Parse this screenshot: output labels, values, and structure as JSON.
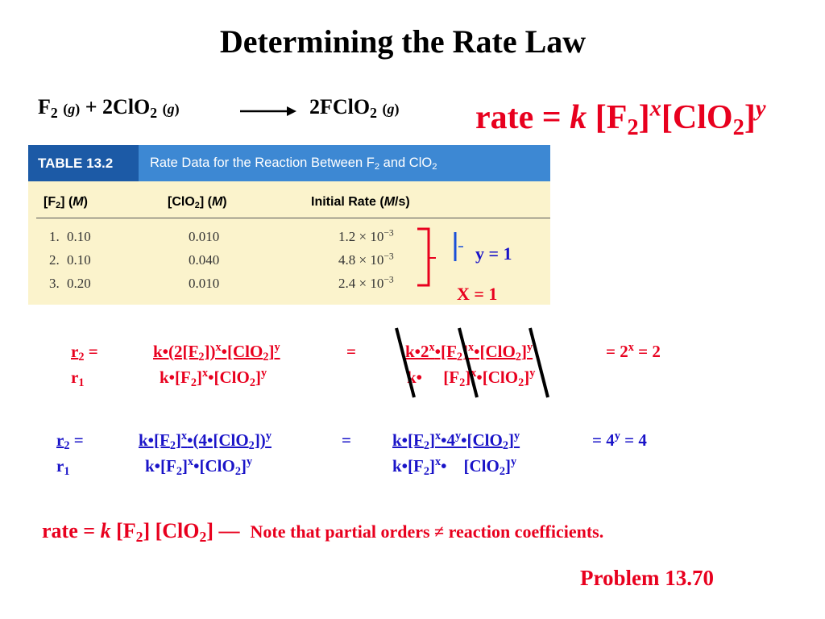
{
  "title": "Determining the Rate Law",
  "reaction": {
    "f2": "F",
    "f2_sub": "2",
    "g1": "g",
    "plus_clo2": "+ 2ClO",
    "clo2_sub": "2",
    "g2": "g",
    "product": "2FClO",
    "product_sub": "2",
    "g3": "g"
  },
  "rate_law_general": {
    "lhs": "rate =",
    "k": "k",
    "f2": "[F",
    "f2_sub": "2",
    "close1": "]",
    "x": "x",
    "clo2": "[ClO",
    "clo2_sub": "2",
    "close2": "]",
    "y": "y"
  },
  "table": {
    "tag": "TABLE 13.2",
    "caption": "Rate Data for the Reaction Between F",
    "caption_sub": "2",
    "caption_tail": " and ClO",
    "caption_sub2": "2",
    "columns": {
      "c1": "[F",
      "c1_sub": "2",
      "c1_tail": "] (",
      "c1_unit": "M",
      "c1_end": ")",
      "c2": "[ClO",
      "c2_sub": "2",
      "c2_tail": "] (",
      "c2_unit": "M",
      "c2_end": ")",
      "c3": "Initial Rate (",
      "c3_unit": "M",
      "c3_end": "/s)"
    },
    "rows": [
      {
        "num": "1.",
        "f2": "0.10",
        "clo2": "0.010",
        "rate": "1.2 × 10",
        "exp": "−3"
      },
      {
        "num": "2.",
        "f2": "0.10",
        "clo2": "0.040",
        "rate": "4.8 × 10",
        "exp": "−3"
      },
      {
        "num": "3.",
        "f2": "0.20",
        "clo2": "0.010",
        "rate": "2.4 × 10",
        "exp": "−3"
      }
    ]
  },
  "annotations": {
    "y_result": "y = 1",
    "x_result": "X = 1"
  },
  "calc_x": {
    "r2": "r",
    "r2_sub": "2",
    "eq": "=",
    "r1": "r",
    "r1_sub": "1",
    "num1": "k•(2[F",
    "num1_sub": "2",
    "num1_b": "])",
    "num1_x": "x",
    "num1_c": "•[ClO",
    "num1_sub2": "2",
    "num1_d": "]",
    "num1_y": "y",
    "den1": "k•[F",
    "den1_sub": "2",
    "den1_b": "]",
    "den1_x": "x",
    "den1_c": "•[ClO",
    "den1_sub2": "2",
    "den1_d": "]",
    "den1_y": "y",
    "eq2": "=",
    "num2": "k•2",
    "num2_x": "x",
    "num2_b": "•[F",
    "num2_sub": "2",
    "num2_c": "]",
    "num2_x2": "x",
    "num2_d": "•[ClO",
    "num2_sub2": "2",
    "num2_e": "]",
    "num2_y": "y",
    "den2": "k•",
    "den2_b": "[F",
    "den2_sub": "2",
    "den2_c": "]",
    "den2_x": "x",
    "den2_d": "•[ClO",
    "den2_sub2": "2",
    "den2_e": "]",
    "den2_y": "y",
    "result": "=  2",
    "result_x": "x",
    "result_tail": " = 2"
  },
  "calc_y": {
    "r2": "r",
    "r2_sub": "2",
    "eq": "=",
    "r1": "r",
    "r1_sub": "1",
    "num1": "k•[F",
    "num1_sub": "2",
    "num1_b": "]",
    "num1_x": "x",
    "num1_c": "•(4•[ClO",
    "num1_sub2": "2",
    "num1_d": "])",
    "num1_y": "y",
    "den1": "k•[F",
    "den1_sub": "2",
    "den1_b": "]",
    "den1_x": "x",
    "den1_c": "•[ClO",
    "den1_sub2": "2",
    "den1_d": "]",
    "den1_y": "y",
    "eq2": "=",
    "num2": "k•[F",
    "num2_sub": "2",
    "num2_b": "]",
    "num2_x": "x",
    "num2_c": "•4",
    "num2_y": "y",
    "num2_d": "•[ClO",
    "num2_sub2": "2",
    "num2_e": "]",
    "num2_y2": "y",
    "den2": "k•[F",
    "den2_sub": "2",
    "den2_b": "]",
    "den2_x": "x",
    "den2_c": "•",
    "den2_d": "[ClO",
    "den2_sub2": "2",
    "den2_e": "]",
    "den2_y": "y",
    "result": "=  4",
    "result_y": "y",
    "result_tail": " = 4"
  },
  "final": {
    "lhs": "rate =",
    "k": "k",
    "f2": "[F",
    "f2_sub": "2",
    "f2_close": "]",
    "clo2": "[ClO",
    "clo2_sub": "2",
    "clo2_close": "]",
    "dash": "—",
    "note": "Note that partial orders ≠ reaction coefficients."
  },
  "problem": "Problem 13.70",
  "colors": {
    "red": "#e8001e",
    "blue": "#1a14c8",
    "table_tag": "#1c5aa6",
    "table_caption": "#3d88d3",
    "table_body": "#fbf3cc"
  }
}
